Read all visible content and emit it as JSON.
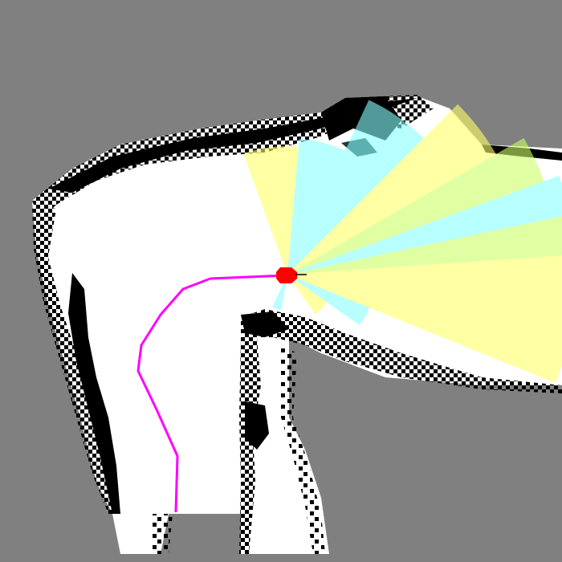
{
  "map": {
    "unknown_color": "#808080",
    "free_color": "#ffffff",
    "occupied_color": "#000000"
  },
  "robot": {
    "color": "#ff0000",
    "icon": "robot-marker-icon"
  },
  "path": {
    "color": "#ff00ff"
  },
  "sensor_cones": {
    "colors": [
      "#ffff66",
      "#88ffff",
      "#ccff66"
    ],
    "opacity": 0.6
  }
}
